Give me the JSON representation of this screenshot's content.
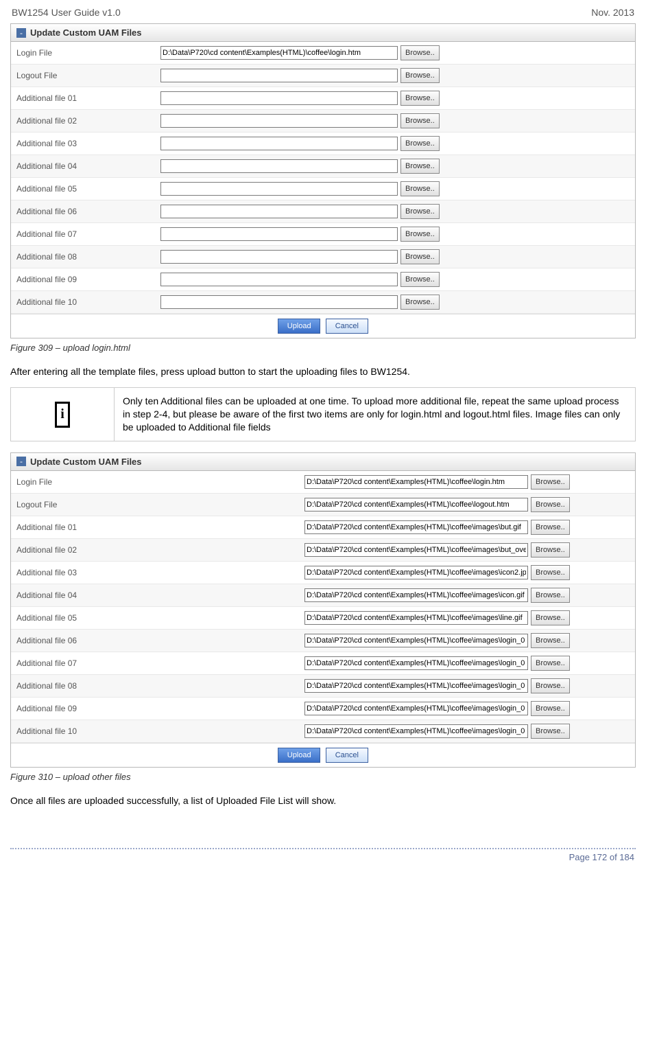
{
  "header": {
    "left": "BW1254 User Guide v1.0",
    "right": "Nov.  2013"
  },
  "panel1": {
    "title": "Update Custom UAM Files",
    "browse_label": "Browse..",
    "upload_label": "Upload",
    "cancel_label": "Cancel",
    "rows": [
      {
        "label": "Login File",
        "value": "D:\\Data\\P720\\cd content\\Examples(HTML)\\coffee\\login.htm"
      },
      {
        "label": "Logout File",
        "value": ""
      },
      {
        "label": "Additional file 01",
        "value": ""
      },
      {
        "label": "Additional file 02",
        "value": ""
      },
      {
        "label": "Additional file 03",
        "value": ""
      },
      {
        "label": "Additional file 04",
        "value": ""
      },
      {
        "label": "Additional file 05",
        "value": ""
      },
      {
        "label": "Additional file 06",
        "value": ""
      },
      {
        "label": "Additional file 07",
        "value": ""
      },
      {
        "label": "Additional file 08",
        "value": ""
      },
      {
        "label": "Additional file 09",
        "value": ""
      },
      {
        "label": "Additional file 10",
        "value": ""
      }
    ]
  },
  "caption1": "Figure 309  – upload login.html",
  "body1": "After entering all the template files, press upload button to start the uploading files to BW1254.",
  "note": {
    "icon_glyph": "i",
    "text": "Only ten Additional files can be uploaded at one time.  To upload more additional file, repeat the same upload process in step 2-4, but please be aware of the first two items are only for login.html and logout.html files. Image files can only be uploaded to Additional file fields"
  },
  "panel2": {
    "title": "Update Custom UAM Files",
    "browse_label": "Browse..",
    "upload_label": "Upload",
    "cancel_label": "Cancel",
    "rows": [
      {
        "label": "Login File",
        "value": "D:\\Data\\P720\\cd content\\Examples(HTML)\\coffee\\login.htm"
      },
      {
        "label": "Logout File",
        "value": "D:\\Data\\P720\\cd content\\Examples(HTML)\\coffee\\logout.htm"
      },
      {
        "label": "Additional file 01",
        "value": "D:\\Data\\P720\\cd content\\Examples(HTML)\\coffee\\images\\but.gif"
      },
      {
        "label": "Additional file 02",
        "value": "D:\\Data\\P720\\cd content\\Examples(HTML)\\coffee\\images\\but_ove"
      },
      {
        "label": "Additional file 03",
        "value": "D:\\Data\\P720\\cd content\\Examples(HTML)\\coffee\\images\\icon2.jp"
      },
      {
        "label": "Additional file 04",
        "value": "D:\\Data\\P720\\cd content\\Examples(HTML)\\coffee\\images\\icon.gif"
      },
      {
        "label": "Additional file 05",
        "value": "D:\\Data\\P720\\cd content\\Examples(HTML)\\coffee\\images\\line.gif"
      },
      {
        "label": "Additional file 06",
        "value": "D:\\Data\\P720\\cd content\\Examples(HTML)\\coffee\\images\\login_0"
      },
      {
        "label": "Additional file 07",
        "value": "D:\\Data\\P720\\cd content\\Examples(HTML)\\coffee\\images\\login_0"
      },
      {
        "label": "Additional file 08",
        "value": "D:\\Data\\P720\\cd content\\Examples(HTML)\\coffee\\images\\login_0"
      },
      {
        "label": "Additional file 09",
        "value": "D:\\Data\\P720\\cd content\\Examples(HTML)\\coffee\\images\\login_0"
      },
      {
        "label": "Additional file 10",
        "value": "D:\\Data\\P720\\cd content\\Examples(HTML)\\coffee\\images\\login_0"
      }
    ]
  },
  "caption2": "Figure 310  – upload other files",
  "body2": "Once all files are uploaded successfully, a list of Uploaded File List will show.",
  "footer": "Page 172 of 184"
}
